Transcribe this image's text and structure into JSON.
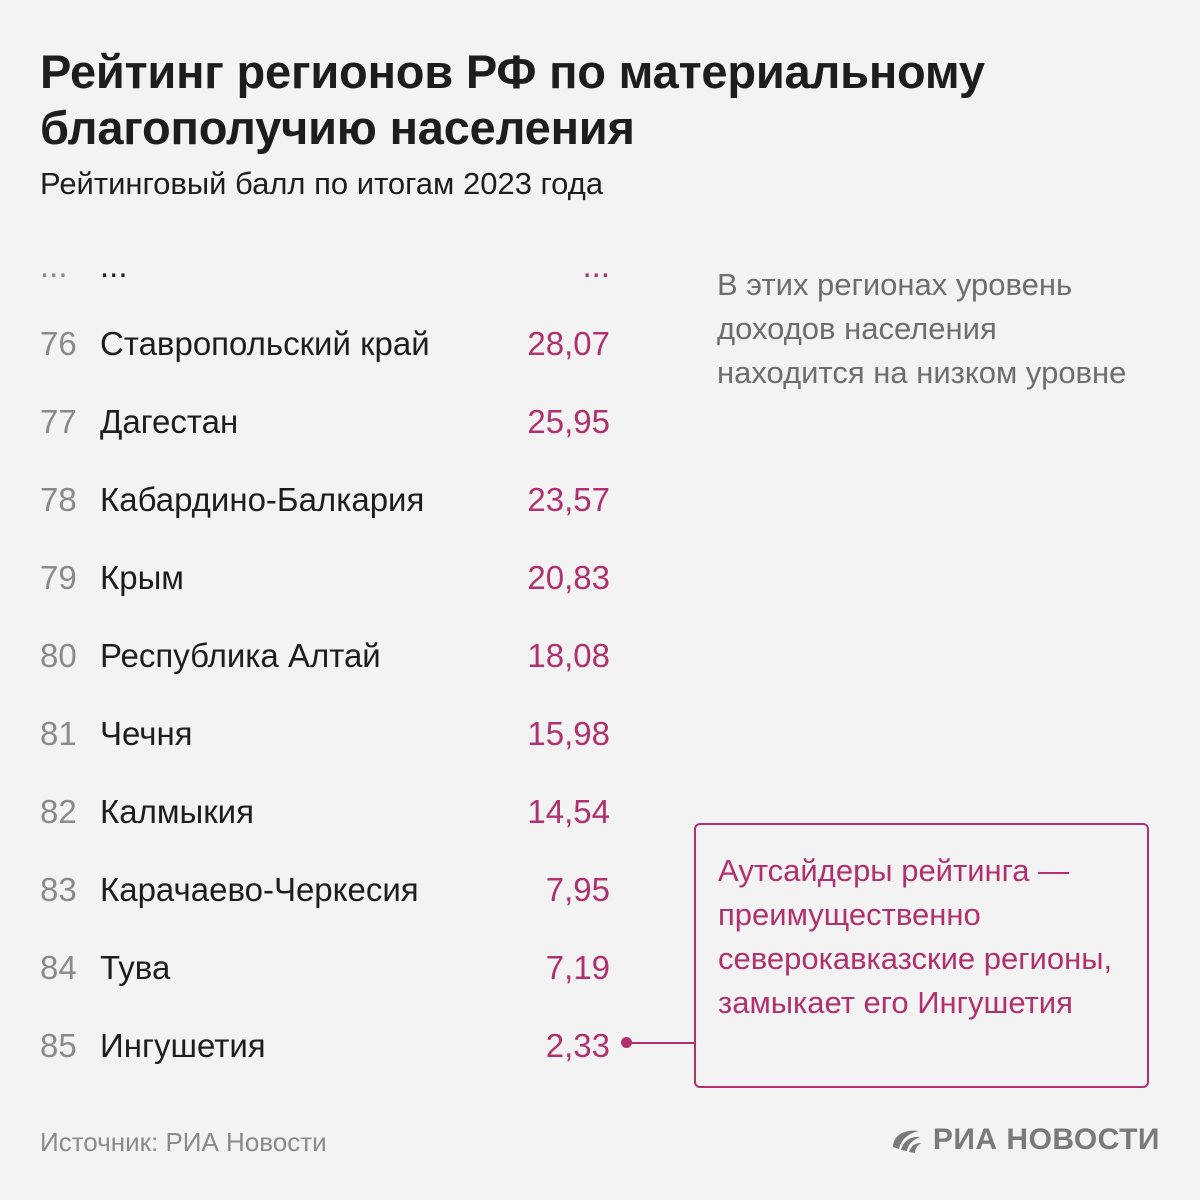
{
  "header": {
    "title": "Рейтинг регионов РФ по материальному благополучию населения",
    "subtitle": "Рейтинговый балл по итогам 2023 года"
  },
  "ellipsis": {
    "rank": "...",
    "name": "...",
    "value": "..."
  },
  "chart_data": {
    "type": "table",
    "title": "Рейтинг регионов РФ по материальному благополучию населения",
    "subtitle": "Рейтинговый балл по итогам 2023 года",
    "columns": [
      "rank",
      "region",
      "score"
    ],
    "rows": [
      {
        "rank": "76",
        "region": "Ставропольский край",
        "score": "28,07",
        "value": 28.07
      },
      {
        "rank": "77",
        "region": "Дагестан",
        "score": "25,95",
        "value": 25.95
      },
      {
        "rank": "78",
        "region": "Кабардино-Балкария",
        "score": "23,57",
        "value": 23.57
      },
      {
        "rank": "79",
        "region": "Крым",
        "score": "20,83",
        "value": 20.83
      },
      {
        "rank": "80",
        "region": "Республика Алтай",
        "score": "18,08",
        "value": 18.08
      },
      {
        "rank": "81",
        "region": "Чечня",
        "score": "15,98",
        "value": 15.98
      },
      {
        "rank": "82",
        "region": "Калмыкия",
        "score": "14,54",
        "value": 14.54
      },
      {
        "rank": "83",
        "region": "Карачаево-Черкесия",
        "score": "7,95",
        "value": 7.95
      },
      {
        "rank": "84",
        "region": "Тува",
        "score": "7,19",
        "value": 7.19
      },
      {
        "rank": "85",
        "region": "Ингушетия",
        "score": "2,33",
        "value": 2.33
      }
    ],
    "annotations": [
      "В этих регионах уровень доходов населения находится на низком уровне",
      "Аутсайдеры рейтинга — преимущественно северокавказские регионы, замыкает его Ингушетия"
    ]
  },
  "notes": {
    "top": "В этих регионах уровень доходов населения находится на низком уровне",
    "callout": "Аутсайдеры рейтинга — преимущественно северокавказские регионы, замыкает его Ингушетия"
  },
  "footer": {
    "source": "Источник: РИА Новости",
    "logo_text": "РИА НОВОСТИ"
  },
  "colors": {
    "accent": "#b0316d",
    "background": "#f4f3f3",
    "text": "#1d1d1d",
    "muted": "#8a8a8a"
  },
  "icons": {
    "logo": "ria-logo-icon"
  }
}
